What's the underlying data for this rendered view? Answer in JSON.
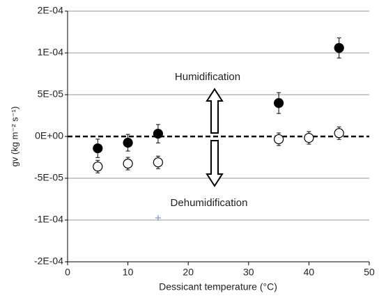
{
  "chart_data": {
    "type": "scatter",
    "xlabel": "Dessicant temperature (°C)",
    "ylabel": "gv (kg m⁻² s⁻¹)",
    "annotations": [
      "Humidification",
      "Dehumidification"
    ],
    "xlim": [
      0,
      50
    ],
    "xticks": [
      0,
      10,
      20,
      30,
      40,
      50
    ],
    "ylim": [
      -0.00015,
      0.00015
    ],
    "yticks": [
      {
        "value": -0.00015,
        "label": "-2E-04"
      },
      {
        "value": -0.0001,
        "label": "-1E-04"
      },
      {
        "value": -5e-05,
        "label": "-5E-05"
      },
      {
        "value": 0,
        "label": "0E+00"
      },
      {
        "value": 5e-05,
        "label": "5E-05"
      },
      {
        "value": 0.0001,
        "label": "1E-04"
      },
      {
        "value": 0.00015,
        "label": "2E-04"
      }
    ],
    "grid": true,
    "series": [
      {
        "color": "#000000",
        "marker": "filled",
        "x": [
          5,
          10,
          15,
          35,
          45
        ],
        "values": [
          -1.42e-05,
          -7.5e-06,
          3.3e-06,
          4e-05,
          0.000106
        ],
        "errors": [
          1.1e-05,
          1e-05,
          1.1e-05,
          1.25e-05,
          1.2e-05
        ]
      },
      {
        "color": "#000000",
        "marker": "open",
        "x": [
          5,
          10,
          15,
          35,
          40,
          45
        ],
        "values": [
          -3.6e-05,
          -3.25e-05,
          -3.1e-05,
          -3.3e-06,
          -1.7e-06,
          4e-06
        ],
        "errors": [
          7.5e-06,
          7.5e-06,
          7.5e-06,
          7.5e-06,
          7.5e-06,
          7.5e-06
        ]
      },
      {
        "color": "#8fa8d8",
        "marker": "plus",
        "x": [
          15
        ],
        "values": [
          -9.75e-05
        ]
      }
    ]
  }
}
